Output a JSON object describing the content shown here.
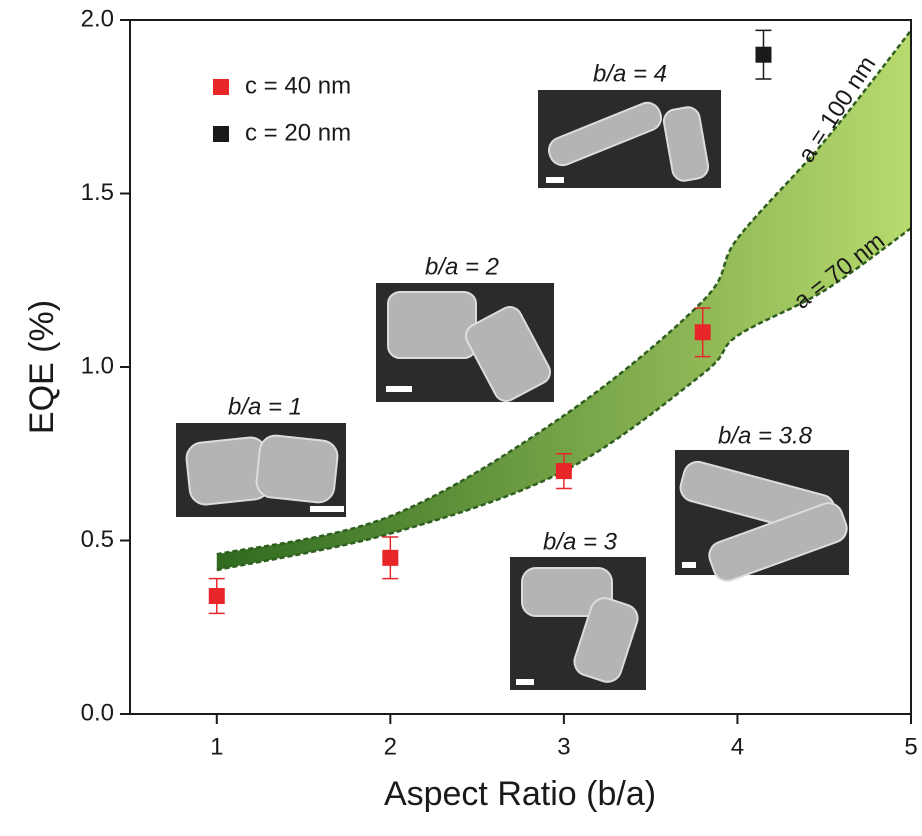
{
  "chart_data": {
    "type": "scatter",
    "x_label": "Aspect Ratio (b/a)",
    "y_label": "EQE (%)",
    "xlim": [
      0.5,
      5
    ],
    "ylim": [
      0,
      2
    ],
    "xticks": [
      1,
      2,
      3,
      4,
      5
    ],
    "yticks": [
      {
        "value": 0,
        "label": "0.0"
      },
      0.5,
      {
        "value": 1,
        "label": "1.0"
      },
      1.5,
      {
        "value": 2,
        "label": "2.0"
      }
    ],
    "series": [
      {
        "name": "c = 40 nm",
        "color": "#e8262a",
        "x": [
          1,
          2,
          3,
          3.8
        ],
        "values": [
          0.34,
          0.45,
          0.7,
          1.1
        ],
        "errors": [
          0.05,
          0.06,
          0.05,
          0.07
        ]
      },
      {
        "name": "c = 20 nm",
        "color": "#1a1a1a",
        "x": [
          4.15
        ],
        "values": [
          1.9
        ],
        "errors": [
          0.07
        ]
      }
    ],
    "curves": [
      {
        "name": "a = 100 nm",
        "color": "#2e5e1e",
        "x": [
          1,
          2,
          3,
          3.8,
          4,
          4.5,
          5
        ],
        "values": [
          0.46,
          0.57,
          0.86,
          1.19,
          1.37,
          1.65,
          1.97
        ]
      },
      {
        "name": "a = 70 nm",
        "color": "#2e5e1e",
        "x": [
          1,
          2,
          3,
          3.8,
          4,
          4.5,
          5
        ],
        "values": [
          0.415,
          0.52,
          0.7,
          0.98,
          1.09,
          1.22,
          1.4
        ]
      }
    ],
    "band_colors": [
      "#2f6a1f",
      "#b8da6e"
    ],
    "image_labels": [
      "b/a = 1",
      "b/a = 2",
      "b/a = 3",
      "b/a = 4",
      "b/a = 3.8"
    ],
    "legend": "upper left"
  }
}
